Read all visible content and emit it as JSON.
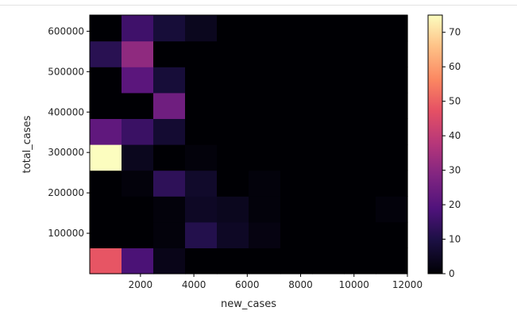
{
  "chart_data": {
    "type": "heatmap",
    "title": "",
    "xlabel": "new_cases",
    "ylabel": "total_cases",
    "colormap": "magma",
    "x_ticks": [
      2000,
      4000,
      6000,
      8000,
      10000,
      12000
    ],
    "y_ticks": [
      100000,
      200000,
      300000,
      400000,
      500000,
      600000
    ],
    "x_tick_labels": [
      "2000",
      "4000",
      "6000",
      "8000",
      "10000",
      "12000"
    ],
    "y_tick_labels": [
      "100000",
      "200000",
      "300000",
      "400000",
      "500000",
      "600000"
    ],
    "x_bin_edges": [
      100,
      1290,
      2480,
      3670,
      4860,
      6050,
      7240,
      8430,
      9620,
      10810,
      12000
    ],
    "y_bin_edges": [
      0,
      64000,
      128000,
      192000,
      256000,
      320000,
      384000,
      448000,
      512000,
      576000,
      640000
    ],
    "xlim": [
      100,
      12000
    ],
    "ylim": [
      0,
      640000
    ],
    "colorbar": {
      "min": 0,
      "max": 75,
      "ticks": [
        0,
        10,
        20,
        30,
        40,
        50,
        60,
        70
      ],
      "tick_labels": [
        "0",
        "10",
        "20",
        "30",
        "40",
        "50",
        "60",
        "70"
      ]
    },
    "counts": [
      [
        48,
        18,
        3,
        0,
        0,
        0,
        0,
        0,
        0,
        0
      ],
      [
        0,
        0,
        1,
        11,
        5,
        2,
        0,
        0,
        0,
        0
      ],
      [
        0,
        0,
        1,
        5,
        4,
        1,
        0,
        0,
        0,
        1
      ],
      [
        0,
        1,
        13,
        6,
        0,
        1,
        0,
        0,
        0,
        0
      ],
      [
        75,
        4,
        0,
        1,
        0,
        0,
        0,
        0,
        0,
        0
      ],
      [
        22,
        15,
        7,
        0,
        0,
        0,
        0,
        0,
        0,
        0
      ],
      [
        0,
        0,
        25,
        0,
        0,
        0,
        0,
        0,
        0,
        0
      ],
      [
        0,
        21,
        8,
        0,
        0,
        0,
        0,
        0,
        0,
        0
      ],
      [
        12,
        31,
        0,
        0,
        0,
        0,
        0,
        0,
        0,
        0
      ],
      [
        0,
        16,
        8,
        4,
        0,
        0,
        0,
        0,
        0,
        0
      ]
    ]
  }
}
